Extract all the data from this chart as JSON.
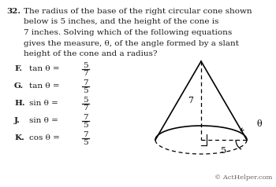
{
  "question_number": "32.",
  "question_lines": [
    "The radius of the base of the right circular cone shown",
    "below is 5 inches, and the height of the cone is",
    "7 inches. Solving which of the following equations",
    "gives the measure, θ, of the angle formed by a slant",
    "height of the cone and a radius?"
  ],
  "choices": [
    {
      "letter": "F.",
      "text": "tan θ = ",
      "num": "5",
      "den": "7"
    },
    {
      "letter": "G.",
      "text": "tan θ = ",
      "num": "7",
      "den": "5"
    },
    {
      "letter": "H.",
      "text": "sin θ = ",
      "num": "5",
      "den": "7"
    },
    {
      "letter": "J.",
      "text": "sin θ = ",
      "num": "7",
      "den": "5"
    },
    {
      "letter": "K.",
      "text": "cos θ = ",
      "num": "7",
      "den": "5"
    }
  ],
  "copyright": "© ActHelper.com",
  "bg_color": "#ffffff",
  "text_color": "#1a1a1a",
  "cone_height_label": "7",
  "cone_radius_label": "5",
  "cone_theta_label": "θ"
}
